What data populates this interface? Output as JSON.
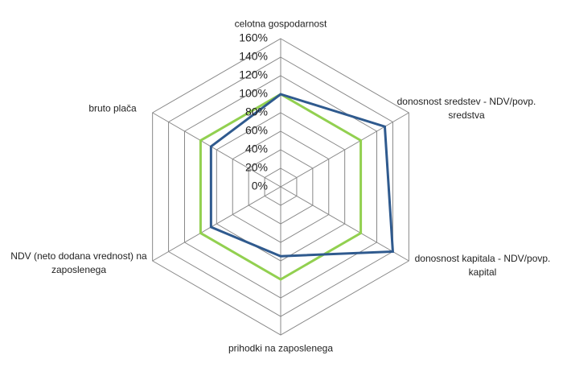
{
  "chart_data": {
    "type": "radar",
    "categories": [
      "celotna gospodarnost",
      "donosnost sredstev - NDV/povp. sredstva",
      "donosnost kapitala - NDV/povp. kapital",
      "prihodki na zaposlenega",
      "NDV (neto dodana vrednost) na zaposlenega",
      "bruto plača"
    ],
    "series": [
      {
        "color": "#92d050",
        "values": [
          100,
          100,
          100,
          100,
          100,
          100
        ]
      },
      {
        "color": "#2f5a8e",
        "values": [
          100,
          130,
          140,
          75,
          87,
          87
        ]
      }
    ],
    "ylim": [
      0,
      160
    ],
    "yticks": [
      {
        "value": 0,
        "label": "0%"
      },
      {
        "value": 20,
        "label": "20%"
      },
      {
        "value": 40,
        "label": "40%"
      },
      {
        "value": 60,
        "label": "60%"
      },
      {
        "value": 80,
        "label": "80%"
      },
      {
        "value": 100,
        "label": "100%"
      },
      {
        "value": 120,
        "label": "120%"
      },
      {
        "value": 140,
        "label": "140%"
      },
      {
        "value": 160,
        "label": "160%"
      }
    ],
    "grid": true
  }
}
